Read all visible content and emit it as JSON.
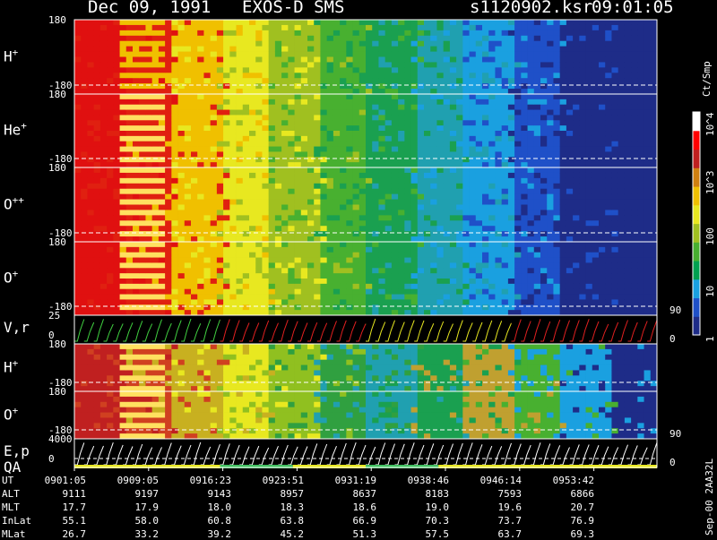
{
  "header": {
    "date": "Dec 09, 1991",
    "instrument": "EXOS-D SMS",
    "file": "s1120902.ksr",
    "time": "09:01:05"
  },
  "colorbar": {
    "unit": "Ct/Smp",
    "labels": [
      "1",
      "10",
      "100",
      "10^3",
      "10^4"
    ],
    "stops": [
      "#1e2c88",
      "#1f50c8",
      "#1aa0e0",
      "#00a050",
      "#48b030",
      "#a0c020",
      "#e8e820",
      "#f0c000",
      "#d08010",
      "#c02020",
      "#ff0000",
      "#ffffff"
    ]
  },
  "chart_data": {
    "type": "heatmap",
    "title": "Dec 09, 1991   EXOS-D SMS",
    "x_ticks": [
      "0901:05",
      "0909:05",
      "0916:23",
      "0923:51",
      "0931:19",
      "0938:46",
      "0946:14",
      "0953:42"
    ],
    "panels": [
      {
        "label": "H",
        "sup": "+",
        "ymax": "180",
        "ymin": "-180"
      },
      {
        "label": "He",
        "sup": "+",
        "ymax": "180",
        "ymin": "-180"
      },
      {
        "label": "O",
        "sup": "++",
        "ymax": "180",
        "ymin": "-180"
      },
      {
        "label": "O",
        "sup": "+",
        "ymax": "180",
        "ymin": "-180",
        "right": "90"
      },
      {
        "label": "V,r",
        "sup": "",
        "ymax": "25",
        "ymin": "0",
        "right": "0",
        "type": "line"
      },
      {
        "label": "H",
        "sup": "+",
        "ymax": "180",
        "ymin": "-180"
      },
      {
        "label": "O",
        "sup": "+",
        "ymax": "180",
        "ymin": "-180",
        "right": "90"
      },
      {
        "label": "E,p",
        "sup": "",
        "ymax": "4000",
        "ymin": "0",
        "right": "0",
        "type": "line",
        "label2": "QA"
      }
    ],
    "ephemeris": {
      "rows": [
        {
          "name": "UT",
          "values": [
            "0901:05",
            "0909:05",
            "0916:23",
            "0923:51",
            "0931:19",
            "0938:46",
            "0946:14",
            "0953:42"
          ]
        },
        {
          "name": "ALT",
          "values": [
            "9111",
            "9197",
            "9143",
            "8957",
            "8637",
            "8183",
            "7593",
            "6866"
          ]
        },
        {
          "name": "MLT",
          "values": [
            "17.7",
            "17.9",
            "18.0",
            "18.3",
            "18.6",
            "19.0",
            "19.6",
            "20.7"
          ]
        },
        {
          "name": "InLat",
          "values": [
            "55.1",
            "58.0",
            "60.8",
            "63.8",
            "66.9",
            "70.3",
            "73.7",
            "76.9"
          ]
        },
        {
          "name": "MLat",
          "values": [
            "26.7",
            "33.2",
            "39.2",
            "45.2",
            "51.3",
            "57.5",
            "63.7",
            "69.3"
          ]
        }
      ]
    }
  },
  "footer": "Sep-00 2AA32L"
}
